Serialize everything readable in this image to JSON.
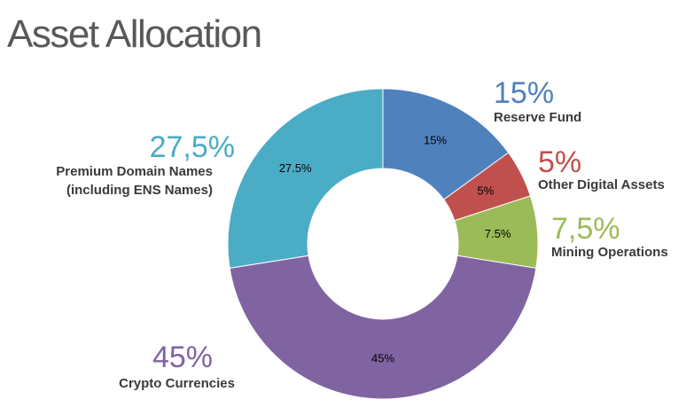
{
  "chart_data": {
    "type": "donut",
    "title": "Asset Allocation",
    "categories": [
      "Reserve Fund",
      "Other Digital Assets",
      "Mining Operations",
      "Crypto Currencies",
      "Premium Domain Names (including ENS Names)"
    ],
    "values": [
      15,
      5,
      7.5,
      45,
      27.5
    ],
    "value_labels": [
      "15%",
      "5%",
      "7.5%",
      "45%",
      "27.5%"
    ],
    "callout_labels": [
      "15%",
      "5%",
      "7,5%",
      "45%",
      "27,5%"
    ],
    "colors": [
      "#4f81bd",
      "#c0504d",
      "#9bbb59",
      "#8064a2",
      "#4bacc6"
    ]
  }
}
